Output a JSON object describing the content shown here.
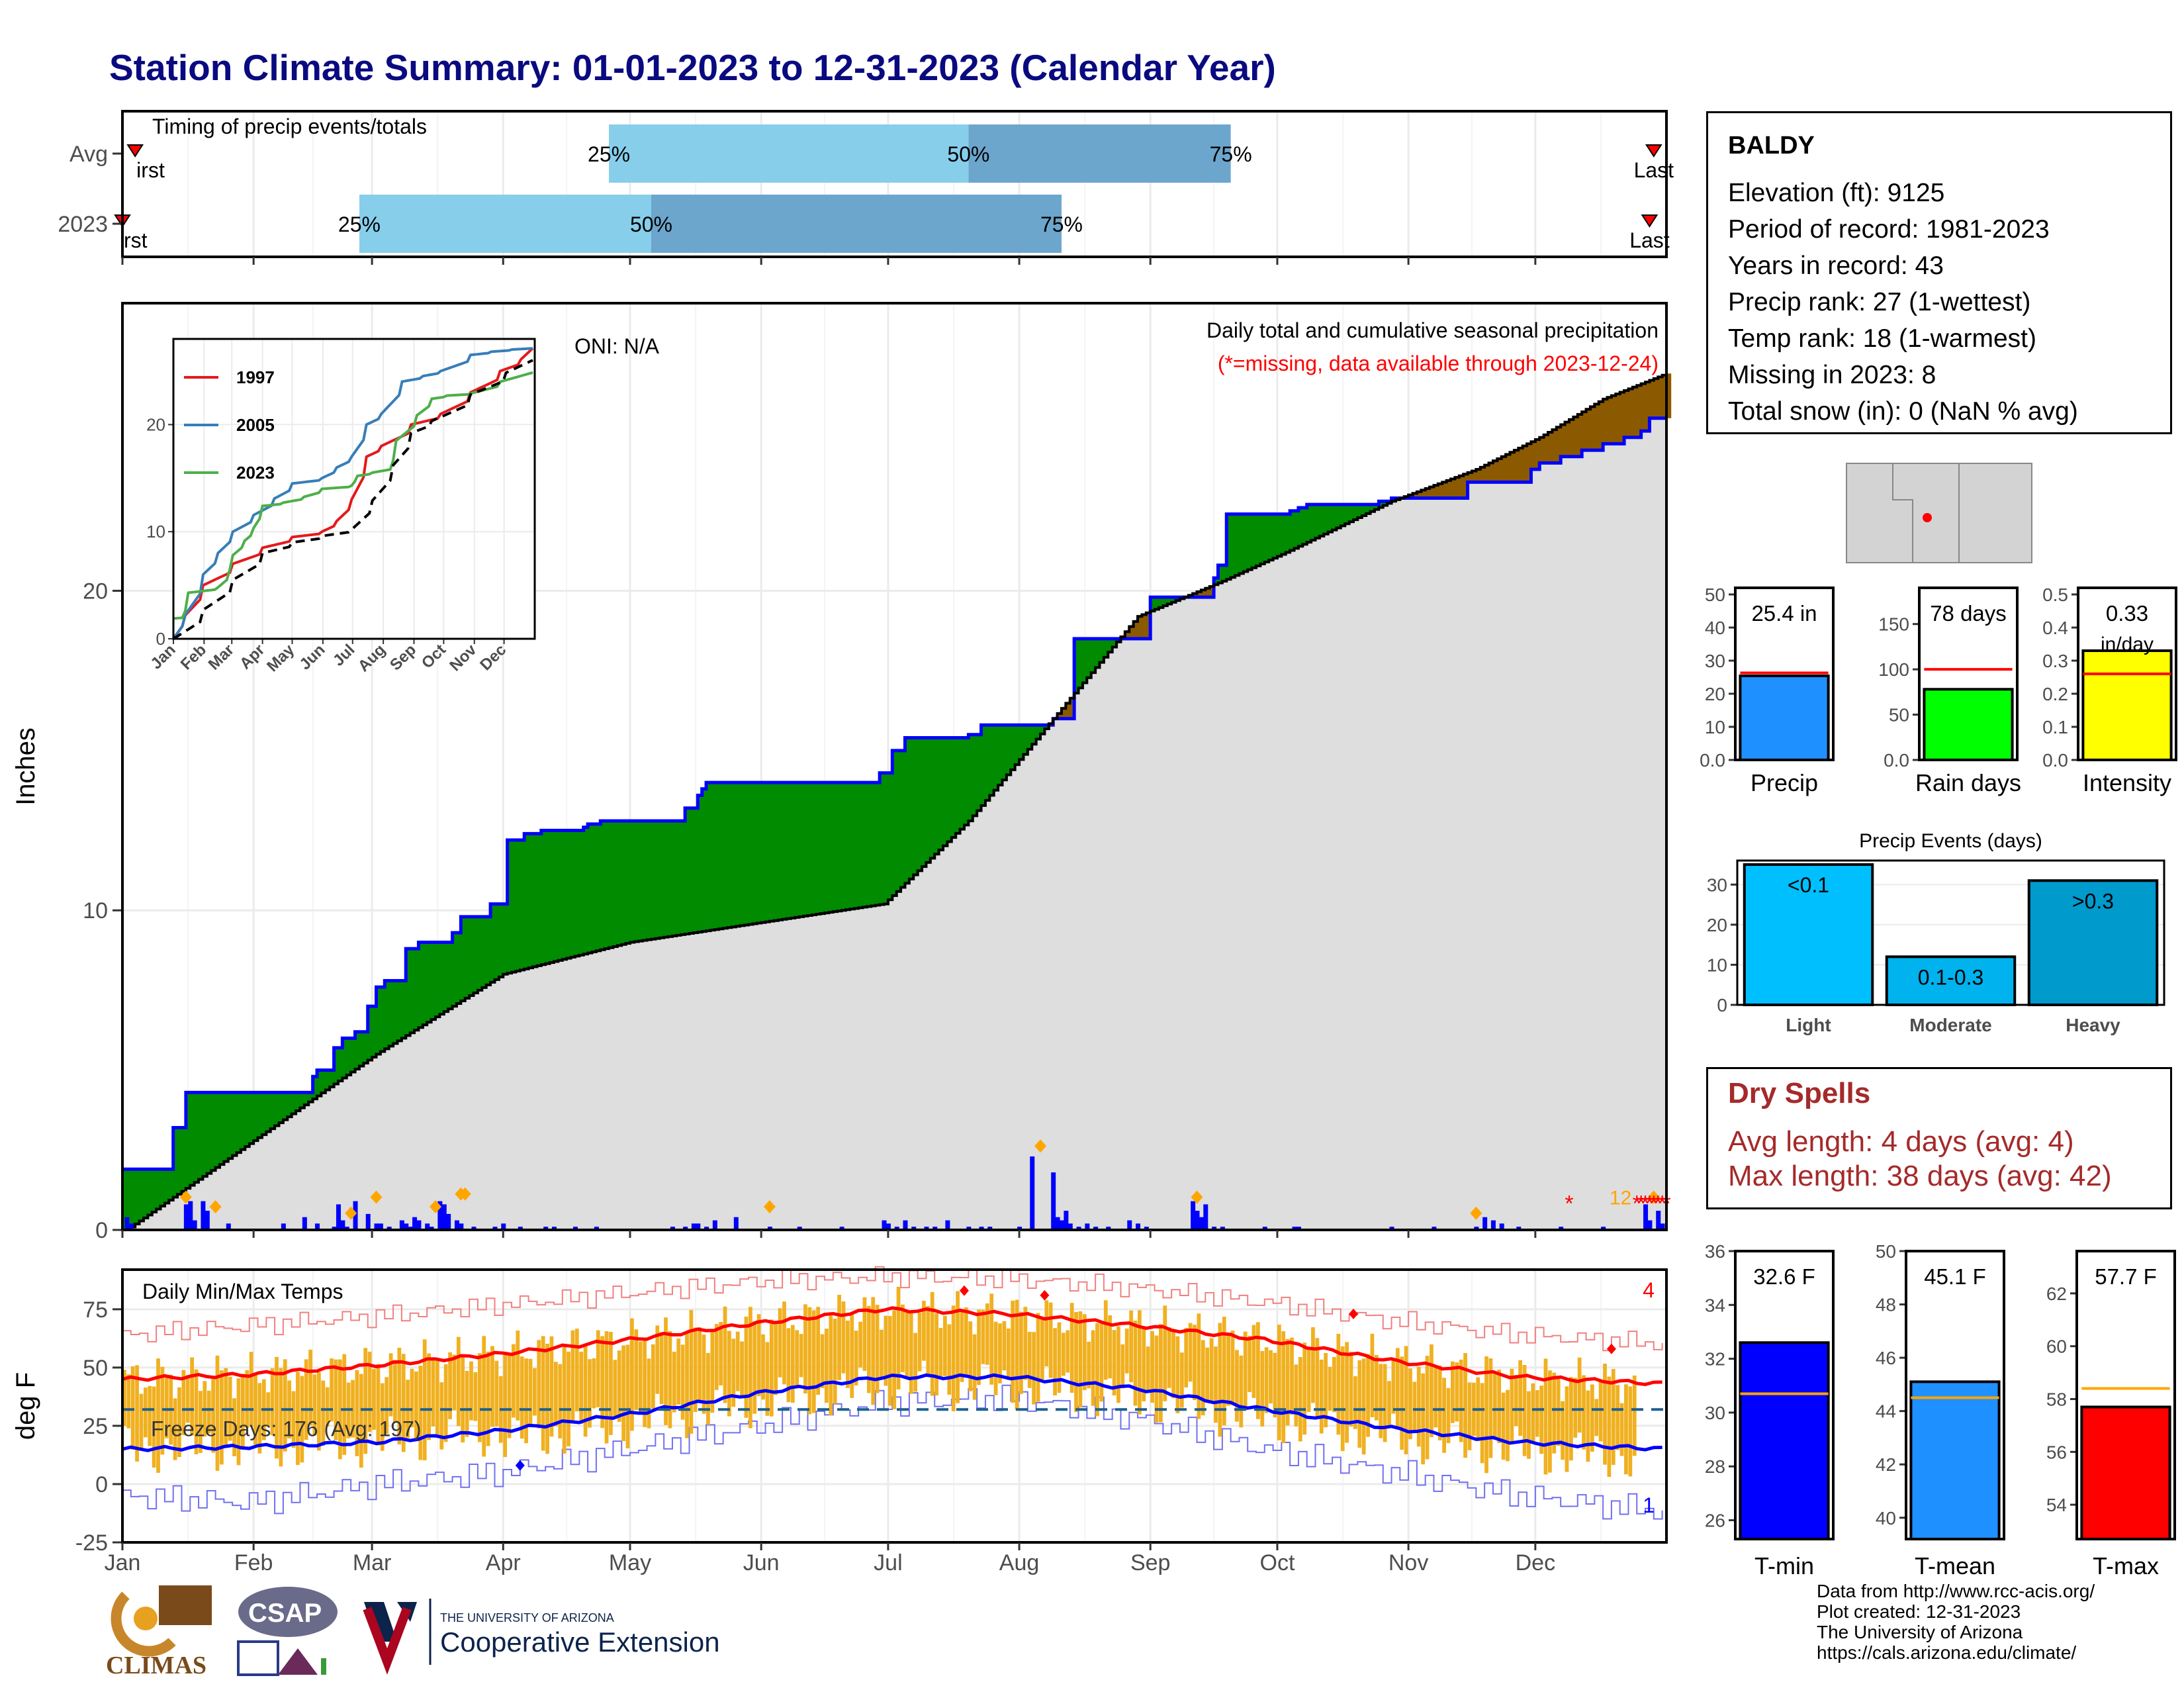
{
  "title": "Station Climate Summary: 01-01-2023 to 12-31-2023 (Calendar Year)",
  "months": [
    "Jan",
    "Feb",
    "Mar",
    "Apr",
    "May",
    "Jun",
    "Jul",
    "Aug",
    "Sep",
    "Oct",
    "Nov",
    "Dec"
  ],
  "station": {
    "name": "BALDY",
    "lines": [
      "Elevation (ft): 9125",
      "Period of record: 1981-2023",
      "Years in record: 43",
      "Precip rank: 27 (1-wettest)",
      "Temp rank: 18 (1-warmest)",
      "Missing in 2023: 8",
      "Total snow (in): 0 (NaN % avg)"
    ]
  },
  "dry_spells": {
    "title": "Dry Spells",
    "avg_line": "Avg length: 4 days (avg: 4)",
    "max_line": "Max length: 38 days (avg: 42)"
  },
  "credits": [
    "Data from http://www.rcc-acis.org/",
    "Plot created: 12-31-2023",
    "The University of Arizona",
    "https://cals.arizona.edu/climate/"
  ],
  "logos": {
    "climas": "CLIMAS",
    "csap": "CSAP",
    "ua_small": "THE UNIVERSITY OF ARIZONA",
    "ua_big": "Cooperative Extension"
  },
  "chart_data": [
    {
      "id": "timing",
      "type": "bar",
      "title": "Timing of precip events/totals",
      "rows": [
        {
          "label": "Avg",
          "first_doy": 3,
          "p25_doy": 115,
          "p50_doy": 200,
          "p75_doy": 262,
          "last_doy": 362,
          "first_label": "irst",
          "last_label": "Last"
        },
        {
          "label": "2023",
          "first_doy": 0,
          "p25_doy": 56,
          "p50_doy": 125,
          "p75_doy": 222,
          "last_doy": 361,
          "first_label": "rst",
          "last_label": "Last"
        }
      ],
      "pct_labels": [
        "25%",
        "50%",
        "75%"
      ],
      "colors": {
        "q1": "#87ceeb",
        "q2": "#6ca6cd",
        "marker": "#ff0000"
      }
    },
    {
      "id": "cumulative_precip",
      "type": "area",
      "ylabel": "Inches",
      "ylim": [
        0,
        29
      ],
      "yticks": [
        0,
        10,
        20
      ],
      "annotation_right": "Daily total and cumulative seasonal precipitation",
      "annotation_missing": "(*=missing, data available through 2023-12-24)",
      "oni": "ONI: N/A",
      "missing_label": "12",
      "series": [
        {
          "name": "2023 cumulative",
          "color": "#0000ff",
          "x": [
            1,
            10,
            12,
            15,
            45,
            46,
            50,
            52,
            55,
            58,
            60,
            62,
            67,
            70,
            78,
            80,
            87,
            91,
            95,
            99,
            109,
            110,
            113,
            131,
            133,
            136,
            137,
            138,
            140,
            151,
            152,
            179,
            182,
            185,
            190,
            200,
            203,
            220,
            225,
            243,
            258,
            259,
            261,
            276,
            278,
            280,
            297,
            300,
            310,
            318,
            333,
            335,
            340,
            345,
            350,
            355,
            359,
            361,
            365
          ],
          "y": [
            1.9,
            1.9,
            3.2,
            4.3,
            4.8,
            5.0,
            5.7,
            6.0,
            6.2,
            7.0,
            7.6,
            7.8,
            8.8,
            9.0,
            9.3,
            9.8,
            10.2,
            12.2,
            12.4,
            12.5,
            12.6,
            12.7,
            12.8,
            12.8,
            13.2,
            13.6,
            13.8,
            14.0,
            14.0,
            14.0,
            14.0,
            14.3,
            15.0,
            15.4,
            15.4,
            15.5,
            15.8,
            16.0,
            18.5,
            19.8,
            20.4,
            20.8,
            22.4,
            22.5,
            22.6,
            22.7,
            22.8,
            22.9,
            22.9,
            23.4,
            23.8,
            24.0,
            24.2,
            24.4,
            24.6,
            24.8,
            25.0,
            25.4,
            25.4
          ]
        },
        {
          "name": "Average cumulative",
          "color": "#000000",
          "x": [
            1,
            30,
            60,
            90,
            120,
            150,
            180,
            200,
            220,
            240,
            260,
            275,
            300,
            320,
            335,
            350,
            365
          ],
          "y": [
            0,
            2.7,
            5.5,
            8.0,
            9.0,
            9.6,
            10.2,
            12.8,
            16.0,
            19.2,
            20.3,
            21.2,
            22.8,
            23.8,
            24.8,
            26.0,
            26.8
          ]
        },
        {
          "name": "Daily precip",
          "color": "#0000ff",
          "x": [
            1,
            2,
            15,
            16,
            17,
            19,
            20,
            25,
            38,
            43,
            46,
            50,
            51,
            52,
            53,
            55,
            58,
            60,
            61,
            63,
            66,
            67,
            68,
            69,
            70,
            72,
            73,
            75,
            76,
            77,
            79,
            80,
            83,
            88,
            90,
            94,
            100,
            102,
            107,
            112,
            130,
            133,
            135,
            136,
            138,
            140,
            145,
            153,
            160,
            170,
            180,
            181,
            183,
            185,
            187,
            190,
            192,
            195,
            200,
            203,
            205,
            212,
            215,
            220,
            221,
            222,
            223,
            224,
            226,
            228,
            230,
            233,
            238,
            242,
            240,
            253,
            254,
            255,
            256,
            258,
            260,
            270,
            277,
            278,
            300,
            310,
            320,
            322,
            324,
            326,
            330,
            340,
            350,
            360,
            361,
            363,
            364
          ],
          "y": [
            0.4,
            0.2,
            0.8,
            0.9,
            0.3,
            0.9,
            0.6,
            0.2,
            0.2,
            0.4,
            0.2,
            0.1,
            0.8,
            0.3,
            0.1,
            0.9,
            0.5,
            0.2,
            0.2,
            0.1,
            0.3,
            0.2,
            0.1,
            0.4,
            0.3,
            0.2,
            0.1,
            0.9,
            0.8,
            0.5,
            0.3,
            0.2,
            0.1,
            0.1,
            0.2,
            0.1,
            0.1,
            0.1,
            0.1,
            0.1,
            0.1,
            0.1,
            0.2,
            0.2,
            0.1,
            0.3,
            0.4,
            0.1,
            0.1,
            0.1,
            0.3,
            0.2,
            0.1,
            0.3,
            0.1,
            0.1,
            0.1,
            0.3,
            0.1,
            0.1,
            0.1,
            0.1,
            2.3,
            1.8,
            0.4,
            0.3,
            0.6,
            0.2,
            0.1,
            0.2,
            0.1,
            0.1,
            0.3,
            0.1,
            0.2,
            0.9,
            0.6,
            0.4,
            0.8,
            0.1,
            0.1,
            0.1,
            0.1,
            0.1,
            0.1,
            0.1,
            0.1,
            0.4,
            0.3,
            0.2,
            0.1,
            0.1,
            0.1,
            0.8,
            0.3,
            0.6,
            0.2
          ]
        },
        {
          "name": "Event markers",
          "color": "#ffa500",
          "x": [
            15,
            22,
            54,
            60,
            74,
            80,
            81,
            153,
            217,
            254,
            320,
            362
          ],
          "y": [
            0.9,
            0.6,
            0.4,
            0.9,
            0.6,
            1.0,
            1.0,
            0.6,
            2.5,
            0.9,
            0.4,
            0.9
          ]
        },
        {
          "name": "Missing",
          "color": "#ff0000",
          "x": [
            342,
            358,
            359,
            360,
            361,
            362,
            363,
            364,
            365
          ],
          "y": [
            1.0,
            1.0,
            1.0,
            1.0,
            1.0,
            1.0,
            1.0,
            1.0,
            1.0
          ]
        }
      ]
    },
    {
      "id": "inset_years",
      "type": "line",
      "xlabels": [
        "Jan",
        "Feb",
        "Mar",
        "Apr",
        "May",
        "Jun",
        "Jul",
        "Aug",
        "Sep",
        "Oct",
        "Nov",
        "Dec"
      ],
      "ylim": [
        0,
        28
      ],
      "yticks": [
        0,
        10,
        20
      ],
      "series": [
        {
          "name": "1997",
          "color": "#e41a1c",
          "x": [
            0,
            10,
            30,
            60,
            90,
            120,
            150,
            165,
            180,
            195,
            210,
            240,
            270,
            300,
            330,
            350,
            365
          ],
          "y": [
            0,
            2,
            5,
            7,
            8.5,
            9.5,
            10,
            11,
            13,
            17,
            18,
            20,
            21,
            23,
            25,
            26,
            28
          ]
        },
        {
          "name": "2005",
          "color": "#377eb8",
          "x": [
            0,
            10,
            30,
            45,
            60,
            80,
            100,
            120,
            150,
            165,
            180,
            195,
            210,
            230,
            250,
            270,
            300,
            320,
            340,
            365
          ],
          "y": [
            0,
            2,
            6,
            8,
            10,
            11.5,
            13,
            14.5,
            15,
            16,
            17,
            20,
            21,
            24,
            24.5,
            25,
            26.5,
            26.8,
            27,
            27.2
          ]
        },
        {
          "name": "2023",
          "color": "#4daf4a",
          "x": [
            0,
            10,
            15,
            45,
            55,
            60,
            70,
            80,
            90,
            110,
            130,
            150,
            180,
            185,
            200,
            220,
            225,
            245,
            260,
            275,
            300,
            330,
            365
          ],
          "y": [
            1.9,
            2,
            4.3,
            4.8,
            6,
            7.8,
            9.0,
            10.2,
            12.4,
            12.7,
            13.2,
            14,
            14.3,
            15.2,
            15.5,
            16,
            18.5,
            20.8,
            22.4,
            22.7,
            22.9,
            24,
            25.4
          ]
        },
        {
          "name": "Average",
          "color": "#000000",
          "x": [
            0,
            30,
            60,
            90,
            120,
            150,
            180,
            200,
            220,
            240,
            260,
            300,
            335,
            365
          ],
          "y": [
            0,
            2.7,
            5.5,
            8,
            9,
            9.6,
            10.2,
            12.8,
            16,
            19.2,
            20.3,
            22.8,
            24.8,
            26.8
          ]
        }
      ]
    },
    {
      "id": "daily_temps",
      "type": "bar",
      "title": "Daily Min/Max Temps",
      "ylabel": "deg F",
      "ylim": [
        -25,
        92
      ],
      "yticks": [
        -25,
        0,
        25,
        50,
        75
      ],
      "freeze_label": "Freeze Days: 176 (Avg: 197)",
      "freeze_line": 32,
      "count_max": "4",
      "count_min": "1",
      "avg_max": {
        "x": [
          0,
          30,
          60,
          90,
          120,
          150,
          180,
          210,
          240,
          270,
          300,
          330,
          365
        ],
        "y": [
          45,
          47,
          51,
          56,
          62,
          69,
          75,
          73,
          68,
          62,
          53,
          46,
          43
        ]
      },
      "avg_min": {
        "x": [
          0,
          30,
          60,
          90,
          120,
          150,
          180,
          210,
          240,
          270,
          300,
          330,
          365
        ],
        "y": [
          15,
          16,
          18,
          23,
          30,
          39,
          46,
          46,
          41,
          32,
          24,
          18,
          15
        ]
      },
      "record_max": {
        "x": [
          0,
          30,
          60,
          90,
          120,
          150,
          180,
          210,
          240,
          270,
          300,
          330,
          365
        ],
        "y": [
          64,
          68,
          72,
          77,
          82,
          87,
          89,
          88,
          84,
          78,
          70,
          64,
          60
        ]
      },
      "record_min": {
        "x": [
          0,
          30,
          60,
          90,
          120,
          150,
          180,
          210,
          240,
          270,
          300,
          330,
          365
        ],
        "y": [
          -5,
          -8,
          0,
          5,
          15,
          25,
          35,
          37,
          28,
          15,
          5,
          -5,
          -12
        ]
      },
      "record_markers_high": [
        [
          199,
          83
        ],
        [
          218,
          81
        ],
        [
          291,
          73
        ],
        [
          352,
          58
        ]
      ],
      "record_markers_low": [
        [
          94,
          8
        ]
      ]
    },
    {
      "id": "precip_summary",
      "type": "bar",
      "bars": [
        {
          "label": "Precip",
          "value": 25.4,
          "avg": 26.3,
          "value_label": "25.4 in",
          "ylim": [
            0,
            52
          ],
          "yticks": [
            0,
            10,
            20,
            30,
            40,
            50
          ],
          "color": "#1e90ff"
        },
        {
          "label": "Rain days",
          "value": 78,
          "avg": 100,
          "value_label": "78 days",
          "ylim": [
            0,
            190
          ],
          "yticks": [
            0,
            50,
            100,
            150
          ],
          "color": "#00ff00"
        },
        {
          "label": "Intensity",
          "value": 0.33,
          "avg": 0.26,
          "value_label": "0.33",
          "value_sub": "in/day",
          "ylim": [
            0,
            0.52
          ],
          "yticks": [
            0.0,
            0.1,
            0.2,
            0.3,
            0.4,
            0.5
          ],
          "color": "#ffff00"
        }
      ]
    },
    {
      "id": "precip_events",
      "type": "bar",
      "title": "Precip Events (days)",
      "categories": [
        "Light",
        "Moderate",
        "Heavy"
      ],
      "values": [
        35,
        12,
        31
      ],
      "bar_labels": [
        "<0.1",
        "0.1-0.3",
        ">0.3"
      ],
      "ylim": [
        0,
        36
      ],
      "yticks": [
        0,
        10,
        20,
        30
      ],
      "colors": [
        "#00bfff",
        "#00b2ee",
        "#009acd"
      ]
    },
    {
      "id": "temp_summary",
      "type": "bar",
      "bars": [
        {
          "label": "T-min",
          "value": 32.6,
          "avg": 30.7,
          "value_label": "32.6 F",
          "ylim": [
            25.3,
            36
          ],
          "yticks": [
            26,
            28,
            30,
            32,
            34,
            36
          ],
          "color": "#0000ff"
        },
        {
          "label": "T-mean",
          "value": 45.1,
          "avg": 44.5,
          "value_label": "45.1 F",
          "ylim": [
            39.2,
            50
          ],
          "yticks": [
            40,
            42,
            44,
            46,
            48,
            50
          ],
          "color": "#1e90ff"
        },
        {
          "label": "T-max",
          "value": 57.7,
          "avg": 58.4,
          "value_label": "57.7 F",
          "ylim": [
            52.7,
            63.6
          ],
          "yticks": [
            54,
            56,
            58,
            60,
            62
          ],
          "color": "#ff0000"
        }
      ]
    }
  ]
}
